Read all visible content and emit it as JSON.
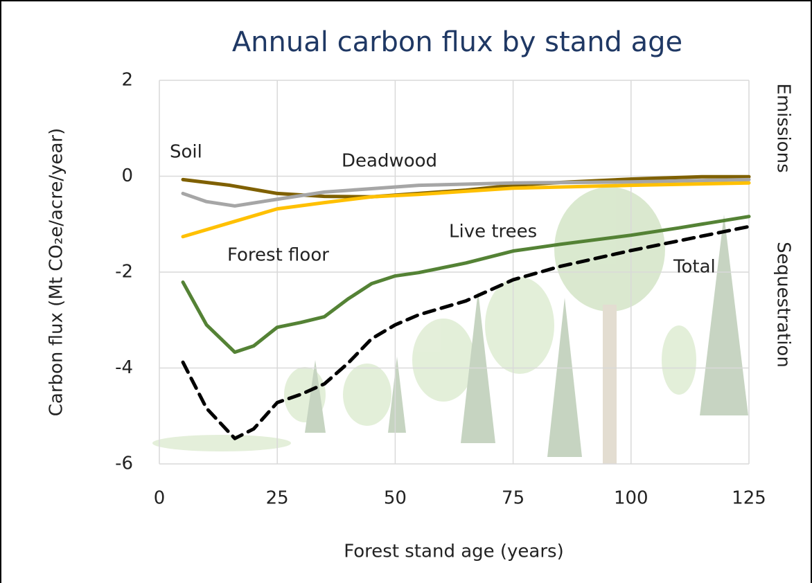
{
  "chart_data": {
    "type": "line",
    "title": "Annual carbon flux by stand age",
    "xlabel": "Forest stand age (years)",
    "ylabel": "Carbon flux (Mt CO₂e/acre/year)",
    "xlim": [
      0,
      125
    ],
    "xticks": [
      0,
      25,
      50,
      75,
      100,
      125
    ],
    "ylim": [
      -6,
      2
    ],
    "yticks": [
      -6,
      -4,
      -2,
      0,
      2
    ],
    "grid": true,
    "right_labels": [
      "Emissions",
      "Sequestration"
    ],
    "series": [
      {
        "name": "Soil",
        "color": "#7f6000",
        "dash": false,
        "x": [
          5,
          15,
          25,
          35,
          45,
          55,
          65,
          75,
          85,
          100,
          115,
          125
        ],
        "values": [
          -0.07,
          -0.19,
          -0.36,
          -0.42,
          -0.43,
          -0.36,
          -0.29,
          -0.19,
          -0.13,
          -0.06,
          -0.01,
          -0.01
        ]
      },
      {
        "name": "Deadwood",
        "color": "#a6a6a6",
        "dash": false,
        "x": [
          5,
          10,
          16,
          25,
          35,
          45,
          55,
          75,
          100,
          125
        ],
        "values": [
          -0.36,
          -0.53,
          -0.62,
          -0.48,
          -0.33,
          -0.26,
          -0.19,
          -0.14,
          -0.12,
          -0.07
        ]
      },
      {
        "name": "Forest floor",
        "color": "#ffc000",
        "dash": false,
        "x": [
          5,
          15,
          25,
          35,
          45,
          55,
          75,
          100,
          125
        ],
        "values": [
          -1.26,
          -0.97,
          -0.68,
          -0.55,
          -0.43,
          -0.38,
          -0.25,
          -0.19,
          -0.14
        ]
      },
      {
        "name": "Live trees",
        "color": "#548235",
        "dash": false,
        "x": [
          5,
          10,
          16,
          20,
          25,
          30,
          35,
          40,
          45,
          50,
          55,
          65,
          75,
          85,
          100,
          110,
          125
        ],
        "values": [
          -2.21,
          -3.1,
          -3.67,
          -3.54,
          -3.15,
          -3.05,
          -2.93,
          -2.56,
          -2.24,
          -2.08,
          -2.01,
          -1.81,
          -1.56,
          -1.42,
          -1.23,
          -1.08,
          -0.84
        ]
      },
      {
        "name": "Total",
        "color": "#000000",
        "dash": true,
        "x": [
          5,
          10,
          16,
          20,
          25,
          30,
          35,
          40,
          45,
          50,
          55,
          65,
          75,
          85,
          100,
          110,
          125
        ],
        "values": [
          -3.88,
          -4.84,
          -5.47,
          -5.27,
          -4.72,
          -4.55,
          -4.33,
          -3.9,
          -3.39,
          -3.1,
          -2.89,
          -2.6,
          -2.16,
          -1.88,
          -1.55,
          -1.35,
          -1.05
        ]
      }
    ]
  }
}
